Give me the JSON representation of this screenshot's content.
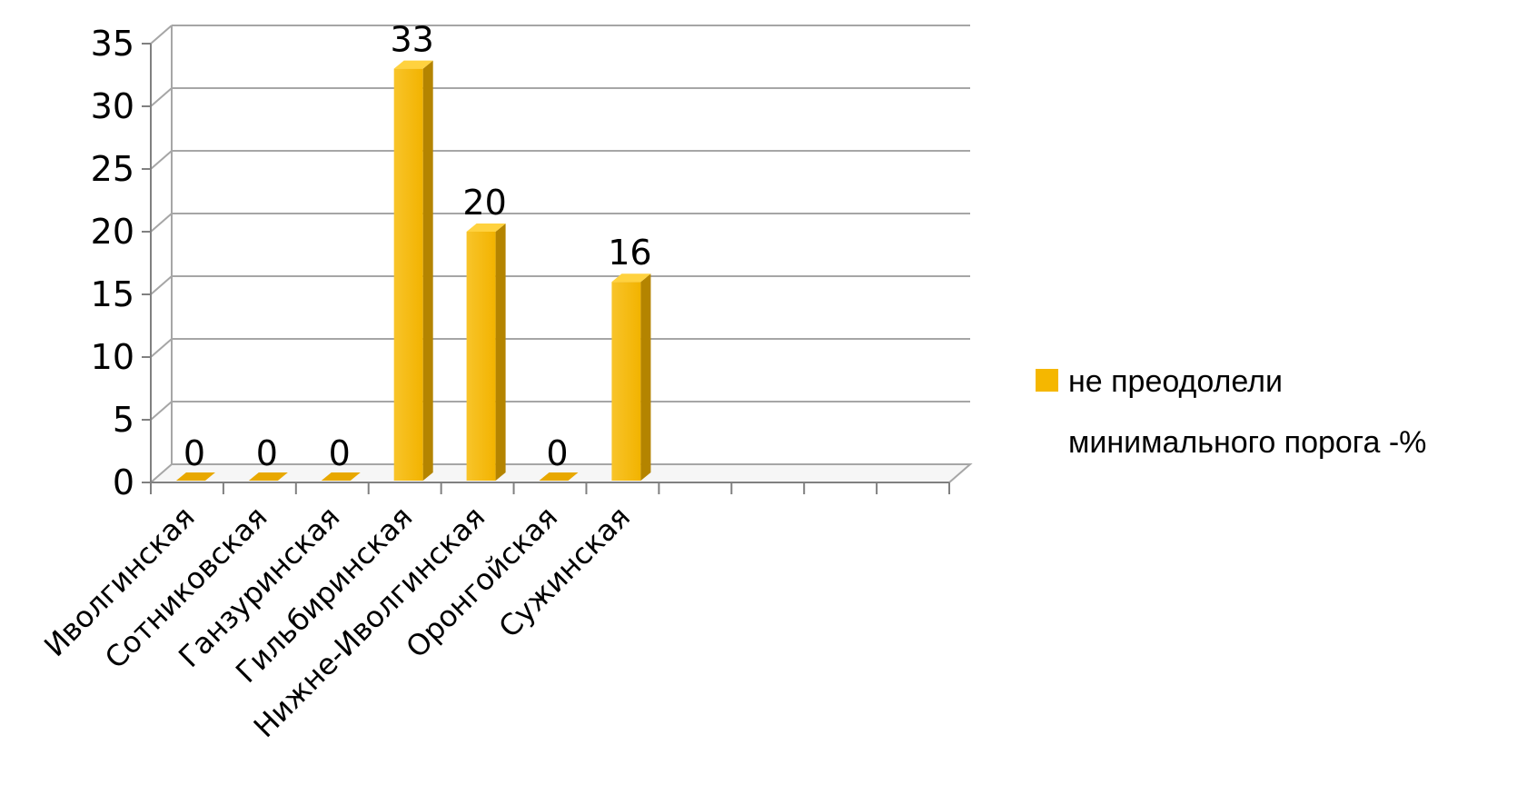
{
  "chart_data": {
    "type": "bar",
    "categories": [
      "Иволгинская",
      "Сотниковская",
      "Ганзуринская",
      "Гильбиринская",
      "Нижне-Иволгинская",
      "Оронгойская",
      "Сужинская",
      "",
      "",
      "",
      ""
    ],
    "series": [
      {
        "name": "не преодолели минимального порога -%",
        "values": [
          0,
          0,
          0,
          33,
          20,
          0,
          16,
          null,
          null,
          null,
          null
        ],
        "color": "#F5B700"
      }
    ],
    "ylim": [
      0,
      35
    ],
    "yticks": [
      0,
      5,
      10,
      15,
      20,
      25,
      30,
      35
    ],
    "grid": true,
    "legend_position": "right",
    "three_d": true
  },
  "legend": {
    "line1": "не преодолели",
    "line2": "минимального порога -%"
  }
}
